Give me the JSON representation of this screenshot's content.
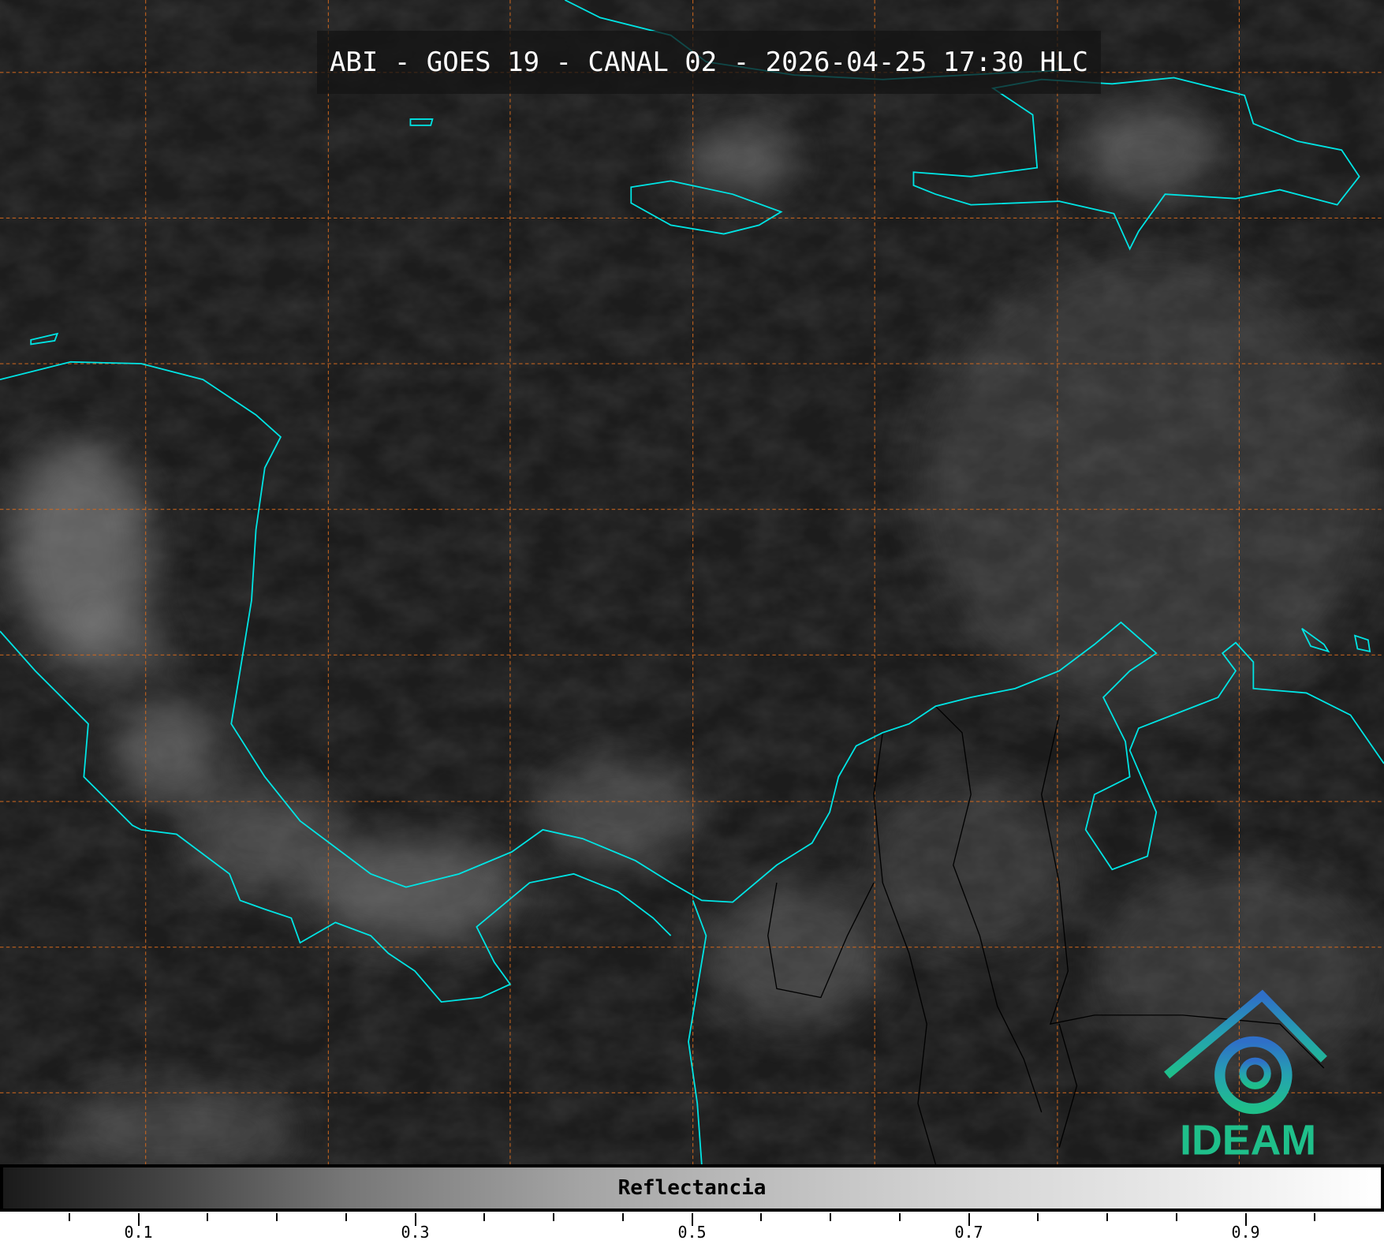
{
  "title": "ABI - GOES 19 - CANAL 02 - 2026-04-25 17:30 HLC",
  "colorbar": {
    "label": "Reflectancia",
    "range": [
      0,
      1
    ],
    "colormap": "grayscale black-to-white",
    "major_ticks": [
      {
        "value": 0.1,
        "label": "0.1"
      },
      {
        "value": 0.3,
        "label": "0.3"
      },
      {
        "value": 0.5,
        "label": "0.5"
      },
      {
        "value": 0.7,
        "label": "0.7"
      },
      {
        "value": 0.9,
        "label": "0.9"
      }
    ],
    "minor_tick_step": 0.05
  },
  "map": {
    "coastline_color": "#00e5e5",
    "border_color": "#000000",
    "grid_color": "#d2691e",
    "grid_style": "dashed"
  },
  "logo": {
    "text": "IDEAM",
    "text_color": "#1fbf8a",
    "roof_color": "#2f7fc8"
  }
}
